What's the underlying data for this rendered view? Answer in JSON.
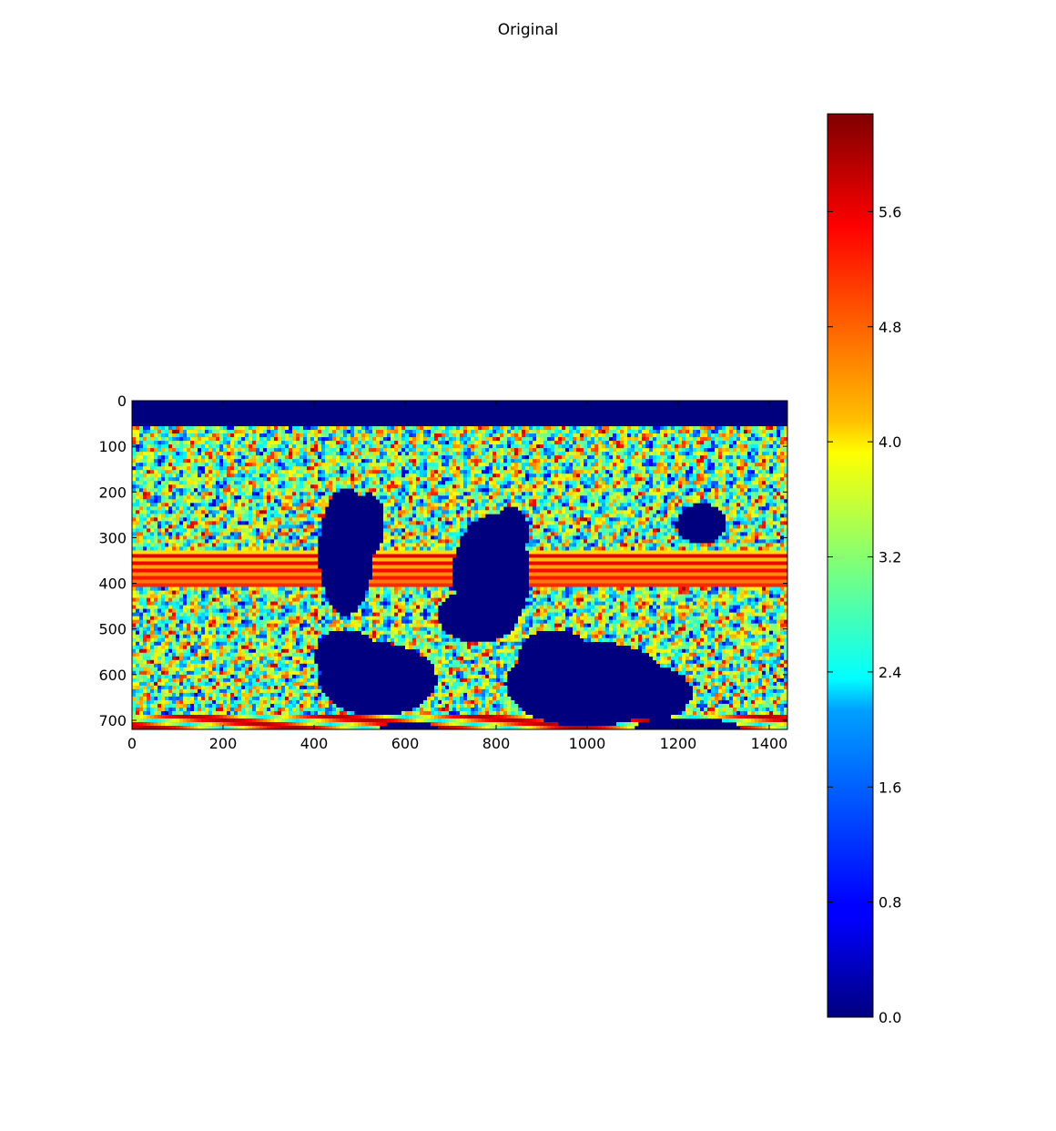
{
  "chart_data": {
    "type": "heatmap",
    "title": "Original",
    "xlabel": "",
    "ylabel": "",
    "colormap": "jet",
    "image_size": {
      "columns": 1440,
      "rows": 720
    },
    "xlim": [
      0,
      1440
    ],
    "ylim": [
      720,
      0
    ],
    "x_ticks": [
      0,
      200,
      400,
      600,
      800,
      1000,
      1200,
      1400
    ],
    "x_tick_labels": [
      "0",
      "200",
      "400",
      "600",
      "800",
      "1000",
      "1200",
      "1400"
    ],
    "y_ticks": [
      0,
      100,
      200,
      300,
      400,
      500,
      600,
      700
    ],
    "y_tick_labels": [
      "0",
      "100",
      "200",
      "300",
      "400",
      "500",
      "600",
      "700"
    ],
    "colorbar": {
      "vmin": 0.0,
      "vmax": 6.28,
      "ticks": [
        0.0,
        0.8,
        1.6,
        2.4,
        3.2,
        4.0,
        4.8,
        5.6
      ],
      "tick_labels": [
        "0.0",
        "0.8",
        "1.6",
        "2.4",
        "3.2",
        "4.0",
        "4.8",
        "5.6"
      ]
    },
    "background_value": 0.0,
    "colors": {
      "jet_dark_blue": "#00007f",
      "jet_blue": "#0000ff",
      "jet_cyan": "#00ffff",
      "jet_yellow": "#ffff00",
      "jet_red": "#ff0000",
      "jet_dark_red": "#7f0000"
    }
  }
}
